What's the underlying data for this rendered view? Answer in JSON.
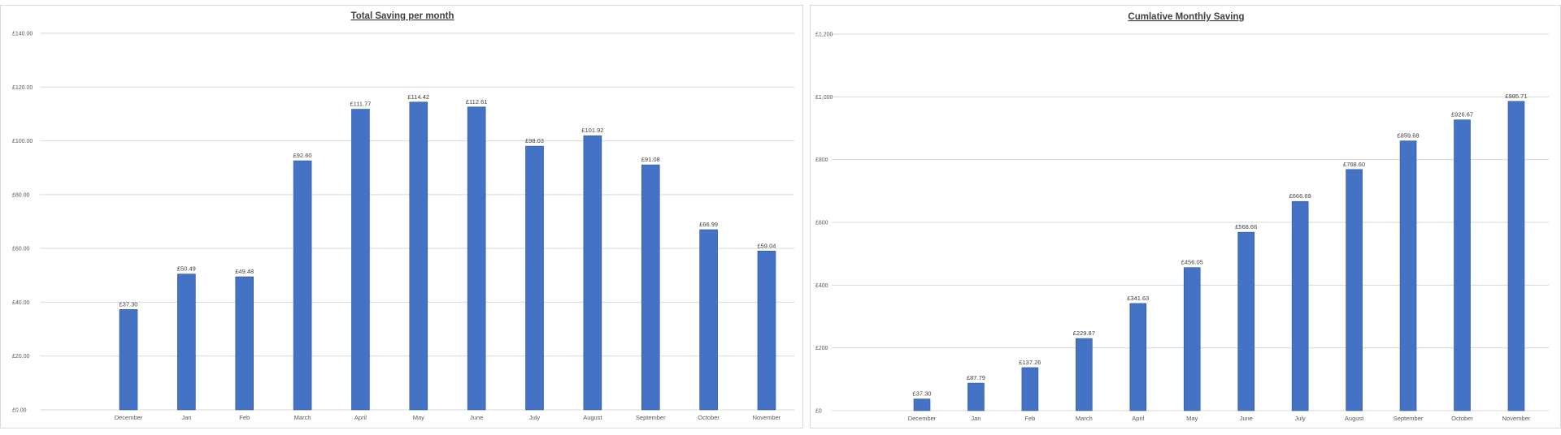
{
  "chart_data": [
    {
      "type": "bar",
      "title": "Total Saving per month",
      "categories": [
        "December",
        "Jan",
        "Feb",
        "March",
        "April",
        "May",
        "June",
        "July",
        "August",
        "September",
        "October",
        "November"
      ],
      "values": [
        37.3,
        50.49,
        49.48,
        92.6,
        111.77,
        114.42,
        112.61,
        98.03,
        101.92,
        91.08,
        66.99,
        59.04
      ],
      "data_labels": [
        "£37.30",
        "£50.49",
        "£49.48",
        "£92.60",
        "£111.77",
        "£114.42",
        "£112.61",
        "£98.03",
        "£101.92",
        "£91.08",
        "£66.99",
        "£59.04"
      ],
      "y_ticks": [
        0,
        20,
        40,
        60,
        80,
        100,
        120,
        140
      ],
      "y_tick_labels": [
        "£0.00",
        "£20.00",
        "£40.00",
        "£60.00",
        "£80.00",
        "£100.00",
        "£120.00",
        "£140.00"
      ],
      "ylim": [
        0,
        140
      ],
      "xlabel": "",
      "ylabel": "",
      "grid": true,
      "legend": "none",
      "bar_color": "#4472c4"
    },
    {
      "type": "bar",
      "title": "Cumlative Monthly Saving",
      "categories": [
        "December",
        "Jan",
        "Feb",
        "March",
        "April",
        "May",
        "June",
        "July",
        "August",
        "September",
        "October",
        "November"
      ],
      "values": [
        37.3,
        87.79,
        137.26,
        229.87,
        341.63,
        456.05,
        568.66,
        666.69,
        768.6,
        859.68,
        926.67,
        985.71
      ],
      "data_labels": [
        "£37.30",
        "£87.79",
        "£137.26",
        "£229.87",
        "£341.63",
        "£456.05",
        "£568.66",
        "£666.69",
        "£768.60",
        "£859.68",
        "£926.67",
        "£985.71"
      ],
      "y_ticks": [
        0,
        200,
        400,
        600,
        800,
        1000,
        1200
      ],
      "y_tick_labels": [
        "£0",
        "£200",
        "£400",
        "£600",
        "£800",
        "£1,000",
        "£1,200"
      ],
      "ylim": [
        0,
        1200
      ],
      "xlabel": "",
      "ylabel": "",
      "grid": true,
      "legend": "none",
      "bar_color": "#4472c4"
    }
  ]
}
